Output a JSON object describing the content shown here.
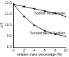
{
  "chart_data": {
    "type": "line",
    "x_label": "relative mass percentage (%)",
    "y_label": "pH",
    "x": [
      0,
      2,
      4,
      6,
      8,
      10
    ],
    "series": [
      {
        "name": "Sodium bicarbonate",
        "color": "#000000",
        "marker": "square",
        "values": [
          11.9,
          11.7,
          11.5,
          11.3,
          11.1,
          10.8
        ]
      },
      {
        "name": "Tetraborate de Sodium",
        "color": "#000000",
        "marker": "square",
        "values": [
          11.9,
          10.8,
          10.0,
          9.5,
          9.2,
          9.0
        ]
      }
    ],
    "xlim": [
      0,
      10
    ],
    "xticks": [
      0,
      2,
      4,
      6,
      8,
      10
    ],
    "ylim": [
      8,
      12
    ],
    "yticks": [
      {
        "value": 8,
        "label": "8.0"
      },
      {
        "value": 9,
        "label": "9.0"
      },
      {
        "value": 10,
        "label": "10.0"
      },
      {
        "value": 11,
        "label": "11.0"
      },
      {
        "value": 12,
        "label": "12.0"
      }
    ],
    "grid": false
  }
}
